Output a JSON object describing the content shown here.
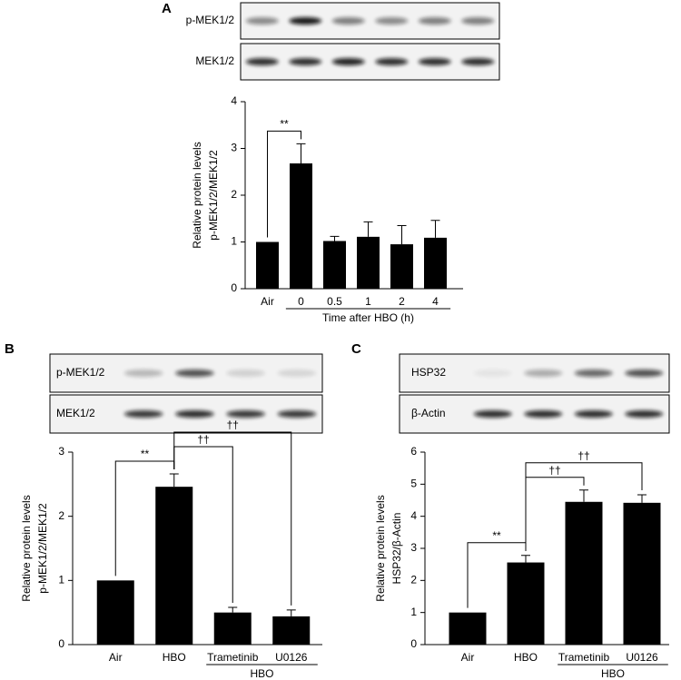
{
  "chart_data": [
    {
      "type": "bar",
      "panel": "A",
      "blots": [
        "p-MEK1/2",
        "MEK1/2"
      ],
      "ylabel": [
        "Relative protein levels",
        "p-MEK1/2/MEK1/2"
      ],
      "categories": [
        "Air",
        "0",
        "0.5",
        "1",
        "2",
        "4"
      ],
      "values": [
        1,
        2.68,
        1.02,
        1.11,
        0.95,
        1.09
      ],
      "errors": [
        0,
        0.42,
        0.1,
        0.32,
        0.4,
        0.37
      ],
      "color": "#000000",
      "ylim": [
        0,
        4
      ],
      "yticks": [
        0,
        1,
        2,
        3,
        4
      ],
      "groups": [
        {
          "label": "Time after HBO (h)",
          "from": 1,
          "to": 5
        }
      ],
      "annotations": [
        {
          "text": "**",
          "from": 0,
          "to": 1
        }
      ]
    },
    {
      "type": "bar",
      "panel": "B",
      "blots": [
        "p-MEK1/2",
        "MEK1/2"
      ],
      "ylabel": [
        "Relative protein levels",
        "p-MEK1/2/MEK1/2"
      ],
      "categories": [
        "Air",
        "HBO",
        "Trametinib",
        "U0126"
      ],
      "values": [
        1,
        2.46,
        0.5,
        0.44
      ],
      "errors": [
        0,
        0.2,
        0.08,
        0.1
      ],
      "color": "#000000",
      "ylim": [
        0,
        3
      ],
      "yticks": [
        0,
        1,
        2,
        3
      ],
      "groups": [
        {
          "label": "HBO",
          "from": 2,
          "to": 3
        }
      ],
      "annotations": [
        {
          "text": "**",
          "from": 0,
          "to": 1
        },
        {
          "text": "††",
          "from": 1,
          "to": 2
        },
        {
          "text": "††",
          "from": 1,
          "to": 3
        }
      ]
    },
    {
      "type": "bar",
      "panel": "C",
      "blots": [
        "HSP32",
        "β-Actin"
      ],
      "ylabel": [
        "Relative protein levels",
        "HSP32/β-Actin"
      ],
      "categories": [
        "Air",
        "HBO",
        "Trametinib",
        "U0126"
      ],
      "values": [
        1,
        2.56,
        4.45,
        4.42
      ],
      "errors": [
        0,
        0.22,
        0.37,
        0.25
      ],
      "color": "#000000",
      "ylim": [
        0,
        6
      ],
      "yticks": [
        0,
        1,
        2,
        3,
        4,
        5,
        6
      ],
      "groups": [
        {
          "label": "HBO",
          "from": 2,
          "to": 3
        }
      ],
      "annotations": [
        {
          "text": "**",
          "from": 0,
          "to": 1
        },
        {
          "text": "††",
          "from": 1,
          "to": 2
        },
        {
          "text": "††",
          "from": 1,
          "to": 3
        }
      ]
    }
  ]
}
